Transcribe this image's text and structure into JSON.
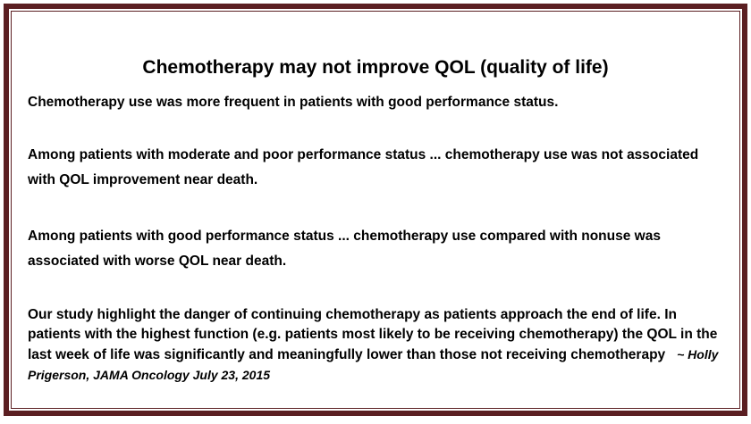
{
  "title": "Chemotherapy may not improve QOL (quality of life)",
  "paragraphs": [
    "Chemotherapy use was more frequent in patients with good performance status.",
    "Among patients with moderate and poor performance status ... chemotherapy use was not associated with QOL improvement near death.",
    "Among patients with good performance status ... chemotherapy use compared with nonuse was associated with worse QOL near death."
  ],
  "quote": "Our study highlight the danger of continuing chemotherapy as patients approach the end of life. In patients with the highest function (e.g. patients most likely to be receiving chemotherapy) the QOL in the last week of life was significantly and meaningfully lower than those not receiving chemotherapy",
  "citation": "~  Holly Prigerson, JAMA Oncology July 23, 2015",
  "colors": {
    "border": "#5b1f22"
  }
}
